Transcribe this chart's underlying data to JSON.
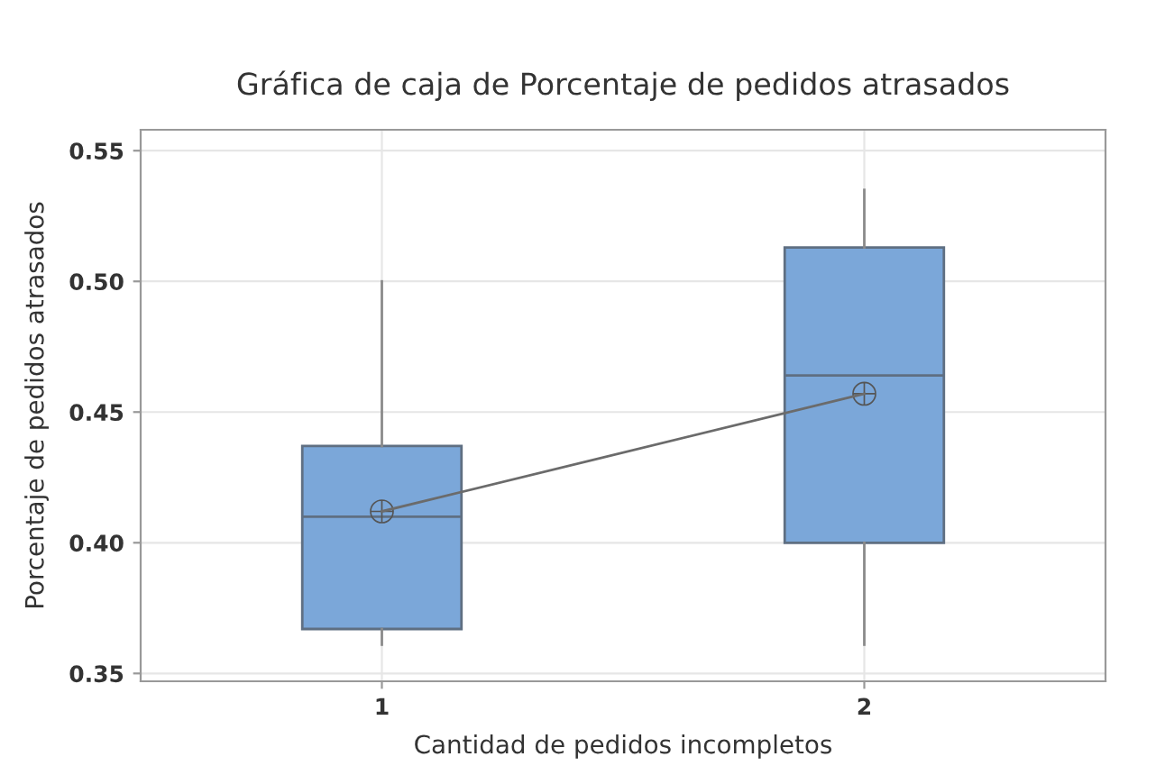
{
  "chart_data": {
    "type": "box",
    "title": "Gráfica de caja de Porcentaje de pedidos atrasados",
    "xlabel": "Cantidad de pedidos incompletos",
    "ylabel": "Porcentaje de pedidos atrasados",
    "categories": [
      "1",
      "2"
    ],
    "boxes": [
      {
        "low": 0.361,
        "q1": 0.367,
        "median": 0.41,
        "q3": 0.437,
        "high": 0.5,
        "mean": 0.412
      },
      {
        "low": 0.361,
        "q1": 0.4,
        "median": 0.464,
        "q3": 0.513,
        "high": 0.535,
        "mean": 0.457
      }
    ],
    "color": "#7ba7d9",
    "series": [
      {
        "type": "line",
        "x": [
          "1",
          "2"
        ],
        "values": [
          0.412,
          0.457
        ],
        "color": "#6b6b6b"
      }
    ],
    "ylim": [
      0.347,
      0.558
    ],
    "yticks": [
      {
        "value": 0.35,
        "label": "0.35"
      },
      {
        "value": 0.4,
        "label": "0.40"
      },
      {
        "value": 0.45,
        "label": "0.45"
      },
      {
        "value": 0.5,
        "label": "0.50"
      },
      {
        "value": 0.55,
        "label": "0.55"
      }
    ],
    "grid": true
  }
}
